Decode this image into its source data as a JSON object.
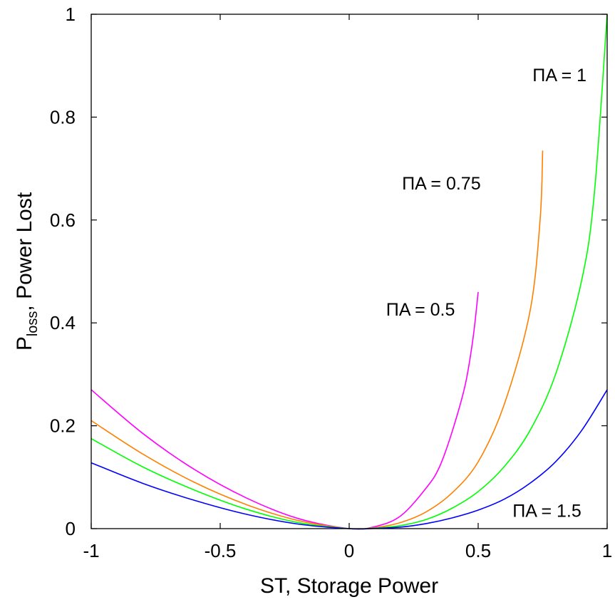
{
  "chart_data": {
    "type": "line",
    "title": "",
    "xlabel": "ST, Storage Power",
    "ylabel_main": "P",
    "ylabel_sub": "loss",
    "ylabel_rest": ", Power Lost",
    "xlim": [
      -1,
      1
    ],
    "ylim": [
      0,
      1
    ],
    "xticks": [
      -1,
      -0.5,
      0,
      0.5,
      1
    ],
    "yticks": [
      0,
      0.2,
      0.4,
      0.6,
      0.8,
      1
    ],
    "xtick_labels": [
      "-1",
      "-0.5",
      "0",
      "0.5",
      "1"
    ],
    "ytick_labels": [
      "0",
      "0.2",
      "0.4",
      "0.6",
      "0.8",
      "1"
    ],
    "grid": false,
    "series": [
      {
        "color": "#ff00ff",
        "x": [
          -1,
          -0.8,
          -0.6,
          -0.4,
          -0.2,
          0,
          0.1,
          0.2,
          0.3,
          0.35,
          0.4,
          0.45,
          0.48,
          0.5
        ],
        "y": [
          0.27,
          0.185,
          0.115,
          0.06,
          0.02,
          0,
          0.004,
          0.025,
          0.08,
          0.12,
          0.19,
          0.28,
          0.37,
          0.46
        ]
      },
      {
        "color": "#ff8000",
        "x": [
          -1,
          -0.8,
          -0.6,
          -0.4,
          -0.2,
          0,
          0.1,
          0.2,
          0.3,
          0.4,
          0.5,
          0.6,
          0.7,
          0.74,
          0.75
        ],
        "y": [
          0.21,
          0.145,
          0.09,
          0.047,
          0.016,
          0,
          0.002,
          0.012,
          0.033,
          0.07,
          0.13,
          0.24,
          0.42,
          0.6,
          0.735
        ]
      },
      {
        "color": "#00ff00",
        "x": [
          -1,
          -0.8,
          -0.6,
          -0.4,
          -0.2,
          0,
          0.1,
          0.2,
          0.3,
          0.4,
          0.5,
          0.6,
          0.7,
          0.8,
          0.9,
          0.95,
          1
        ],
        "y": [
          0.175,
          0.12,
          0.075,
          0.038,
          0.012,
          0,
          0.001,
          0.006,
          0.018,
          0.04,
          0.072,
          0.12,
          0.19,
          0.3,
          0.48,
          0.65,
          1.0
        ]
      },
      {
        "color": "#0000ff",
        "x": [
          -1,
          -0.8,
          -0.6,
          -0.4,
          -0.2,
          0,
          0.1,
          0.2,
          0.3,
          0.4,
          0.5,
          0.6,
          0.7,
          0.8,
          0.9,
          1
        ],
        "y": [
          0.128,
          0.088,
          0.055,
          0.028,
          0.009,
          0,
          0.0005,
          0.003,
          0.01,
          0.021,
          0.036,
          0.057,
          0.088,
          0.13,
          0.19,
          0.27
        ]
      }
    ],
    "annotations": [
      {
        "text": "ΠA = 1",
        "x": 0.92,
        "y": 0.87
      },
      {
        "text": "ΠA = 0.75",
        "x": 0.51,
        "y": 0.659
      },
      {
        "text": "ΠA = 0.5",
        "x": 0.41,
        "y": 0.414
      },
      {
        "text": "ΠA = 1.5",
        "x": 0.9,
        "y": 0.023
      }
    ]
  }
}
